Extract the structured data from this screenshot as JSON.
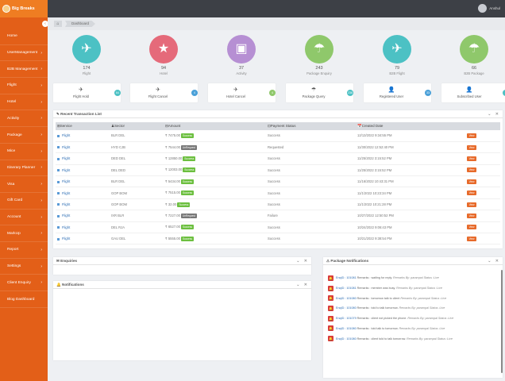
{
  "header": {
    "logo_text": "Big Breaks",
    "user_name": "Anshul"
  },
  "sidebar": {
    "toggle": "‹",
    "items": [
      {
        "label": "Home",
        "arrow": ""
      },
      {
        "label": "UserManagement",
        "arrow": "›"
      },
      {
        "label": "B2B Management",
        "arrow": "›"
      },
      {
        "label": "Flight",
        "arrow": "›"
      },
      {
        "label": "Hotel",
        "arrow": "›"
      },
      {
        "label": "Activity",
        "arrow": "›"
      },
      {
        "label": "Package",
        "arrow": "›"
      },
      {
        "label": "Mice",
        "arrow": "›"
      },
      {
        "label": "Itinerary Planner",
        "arrow": "›"
      },
      {
        "label": "Visa",
        "arrow": "›"
      },
      {
        "label": "Gift Card",
        "arrow": "›"
      },
      {
        "label": "Account",
        "arrow": "›"
      },
      {
        "label": "MarkUp",
        "arrow": "›"
      },
      {
        "label": "Report",
        "arrow": "›"
      },
      {
        "label": "Settings",
        "arrow": "›"
      },
      {
        "label": "Client Enquiry",
        "arrow": "›"
      },
      {
        "label": "Blog Dashboard",
        "arrow": ""
      }
    ]
  },
  "breadcrumb": {
    "home_icon": "⌂",
    "current": "Dashboard"
  },
  "stats": [
    {
      "icon": "✈",
      "color": "#4cc1c4",
      "value": "174",
      "label": "Flight"
    },
    {
      "icon": "★",
      "color": "#e56a7a",
      "value": "94",
      "label": "Hotel"
    },
    {
      "icon": "▣",
      "color": "#b68fd3",
      "value": "37",
      "label": "Activity"
    },
    {
      "icon": "☂",
      "color": "#8fc86b",
      "value": "243",
      "label": "Package Enquiry"
    },
    {
      "icon": "✈",
      "color": "#4cc1c4",
      "value": "79",
      "label": "B2B Flight"
    },
    {
      "icon": "☂",
      "color": "#8fc86b",
      "value": "66",
      "label": "B2B Package"
    }
  ],
  "tiles": [
    {
      "icon": "✈",
      "label": "Flight Hold",
      "badge": "64",
      "badge_color": "#4cc1c4"
    },
    {
      "icon": "✈",
      "label": "Flight Cancel",
      "badge": "4",
      "badge_color": "#4aa0d8"
    },
    {
      "icon": "✈",
      "label": "Hotel Cancel",
      "badge": "4",
      "badge_color": "#8fc86b"
    },
    {
      "icon": "☂",
      "label": "Package Query",
      "badge": "236",
      "badge_color": "#4cc1c4"
    },
    {
      "icon": "👤",
      "label": "Registered User",
      "badge": "33",
      "badge_color": "#4aa0d8"
    },
    {
      "icon": "👤",
      "label": "Subscribed User",
      "badge": "",
      "badge_color": "#4cc1c4"
    }
  ],
  "transactions": {
    "title": "Recent Transaction List",
    "controls": "⌄ ✕",
    "columns": [
      "Service",
      "Sector",
      "Amount",
      "Payment Status",
      "Created Date"
    ],
    "view_label": "View",
    "rows": [
      {
        "service": "Flight",
        "sector": "BLR DEL",
        "amount": "₹ 7475.00",
        "tag": "Success",
        "tag_type": "ok",
        "status": "Success",
        "date": "12/13/2022 9:34:55 PM"
      },
      {
        "service": "Flight",
        "sector": "HYD CJB",
        "amount": "₹ 7544.00",
        "tag": "UnRequest",
        "tag_type": "un",
        "status": "Requested",
        "date": "11/30/2022 12:52:40 PM"
      },
      {
        "service": "Flight",
        "sector": "DED DEL",
        "amount": "₹ 12850.00",
        "tag": "Success",
        "tag_type": "ok",
        "status": "Success",
        "date": "11/25/2022 3:15:52 PM"
      },
      {
        "service": "Flight",
        "sector": "DEL DED",
        "amount": "₹ 12003.00",
        "tag": "Success",
        "tag_type": "ok",
        "status": "Success",
        "date": "11/25/2022 3:15:52 PM"
      },
      {
        "service": "Flight",
        "sector": "BLR DEL",
        "amount": "₹ 5434.00",
        "tag": "Success",
        "tag_type": "ok",
        "status": "Success",
        "date": "11/16/2022 10:43:31 PM"
      },
      {
        "service": "Flight",
        "sector": "GOP BOM",
        "amount": "₹ 7515.00",
        "tag": "Success",
        "tag_type": "ok",
        "status": "Success",
        "date": "11/1/2022 10:23:34 PM"
      },
      {
        "service": "Flight",
        "sector": "GOP BOM",
        "amount": "₹ 32.00",
        "tag": "Success",
        "tag_type": "ok",
        "status": "Success",
        "date": "11/1/2022 10:21:28 PM"
      },
      {
        "service": "Flight",
        "sector": "IXR BLR",
        "amount": "₹ 7227.00",
        "tag": "UnRequest",
        "tag_type": "un",
        "status": "Failure",
        "date": "10/27/2022 12:50:52 PM"
      },
      {
        "service": "Flight",
        "sector": "DEL RJA",
        "amount": "₹ 6527.00",
        "tag": "Success",
        "tag_type": "ok",
        "status": "Success",
        "date": "10/24/2022 9:06:43 PM"
      },
      {
        "service": "Flight",
        "sector": "GAU DEL",
        "amount": "₹ 5555.00",
        "tag": "Success",
        "tag_type": "ok",
        "status": "Success",
        "date": "10/21/2022 9:38:54 PM"
      }
    ]
  },
  "enquiries": {
    "title": "Enquiries",
    "controls": "⌄ ✕"
  },
  "notifications": {
    "title": "Notifications",
    "controls": "⌄ ✕"
  },
  "package_notifications": {
    "title": "Package Notifications",
    "controls": "⌄ ✕",
    "items": [
      {
        "code": "EnqID : 101081",
        "text": "Remarks : waiting for reply.",
        "meta": "Remarks By: parampal Status :Live"
      },
      {
        "code": "EnqID : 101081",
        "text": "Remarks : member was busy.",
        "meta": "Remarks By: parampal Status :Live"
      },
      {
        "code": "EnqID : 101080",
        "text": "Remarks : tomorrow talk to client",
        "meta": "Remarks By: parampal Status :Live"
      },
      {
        "code": "EnqID : 101080",
        "text": "Remarks : told to talk tomorrow.",
        "meta": "Remarks By: parampal Status :Live"
      },
      {
        "code": "EnqID : 101079",
        "text": "Remarks : client not picked the phone.",
        "meta": "Remarks By: parampal Status :Live"
      },
      {
        "code": "EnqID : 101080",
        "text": "Remarks : told talk to tomorrow.",
        "meta": "Remarks By: parampal Status :Live"
      },
      {
        "code": "EnqID : 101080",
        "text": "Remarks : client told to talk tomorrow.",
        "meta": "Remarks By: parampal Status :Live"
      }
    ]
  }
}
